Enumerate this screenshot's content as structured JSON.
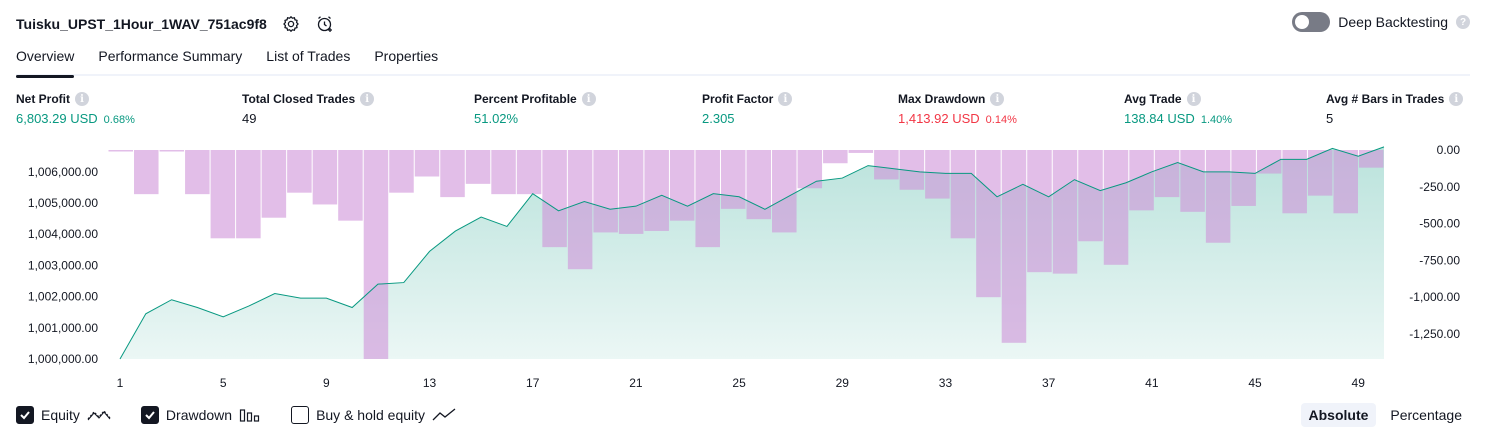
{
  "header": {
    "strategy_name": "Tuisku_UPST_1Hour_1WAV_751ac9f8",
    "settings_icon": "gear-icon",
    "alert_icon": "add-alert-clock-icon",
    "deep_backtesting_label": "Deep Backtesting",
    "deep_backtesting_enabled": false
  },
  "tabs": [
    {
      "label": "Overview",
      "active": true
    },
    {
      "label": "Performance Summary",
      "active": false
    },
    {
      "label": "List of Trades",
      "active": false
    },
    {
      "label": "Properties",
      "active": false
    }
  ],
  "stats": [
    {
      "label": "Net Profit",
      "value": "6,803.29 USD",
      "sub": "0.68%",
      "tone": "green"
    },
    {
      "label": "Total Closed Trades",
      "value": "49",
      "sub": "",
      "tone": "plain"
    },
    {
      "label": "Percent Profitable",
      "value": "51.02%",
      "sub": "",
      "tone": "green"
    },
    {
      "label": "Profit Factor",
      "value": "2.305",
      "sub": "",
      "tone": "green"
    },
    {
      "label": "Max Drawdown",
      "value": "1,413.92 USD",
      "sub": "0.14%",
      "tone": "red"
    },
    {
      "label": "Avg Trade",
      "value": "138.84 USD",
      "sub": "1.40%",
      "tone": "green"
    },
    {
      "label": "Avg # Bars in Trades",
      "value": "5",
      "sub": "",
      "tone": "plain"
    }
  ],
  "chart_data": {
    "type": "area",
    "x_ticks": [
      "1",
      "5",
      "9",
      "13",
      "17",
      "21",
      "25",
      "29",
      "33",
      "37",
      "41",
      "45",
      "49"
    ],
    "left_axis": {
      "ticks": [
        "1,000,000.00",
        "1,001,000.00",
        "1,002,000.00",
        "1,003,000.00",
        "1,004,000.00",
        "1,005,000.00",
        "1,006,000.00"
      ],
      "range": [
        1000000,
        1006700
      ]
    },
    "right_axis": {
      "ticks": [
        "0.00",
        "-250.00",
        "-500.00",
        "-750.00",
        "-1,000.00",
        "-1,250.00"
      ],
      "range": [
        -1420,
        0
      ]
    },
    "series": [
      {
        "name": "Equity",
        "color": "#089981",
        "x": [
          1,
          2,
          3,
          4,
          5,
          6,
          7,
          8,
          9,
          10,
          11,
          12,
          13,
          14,
          15,
          16,
          17,
          18,
          19,
          20,
          21,
          22,
          23,
          24,
          25,
          26,
          27,
          28,
          29,
          30,
          31,
          32,
          33,
          34,
          35,
          36,
          37,
          38,
          39,
          40,
          41,
          42,
          43,
          44,
          45,
          46,
          47,
          48,
          49,
          50
        ],
        "values": [
          1000000,
          1001450,
          1001900,
          1001650,
          1001350,
          1001700,
          1002100,
          1001950,
          1001950,
          1001650,
          1002400,
          1002450,
          1003450,
          1004100,
          1004550,
          1004250,
          1005300,
          1004750,
          1005050,
          1004800,
          1004900,
          1005250,
          1004900,
          1005300,
          1005200,
          1004800,
          1005250,
          1005700,
          1005800,
          1006200,
          1006100,
          1006000,
          1005950,
          1005950,
          1005200,
          1005600,
          1005200,
          1005750,
          1005400,
          1005650,
          1006000,
          1006300,
          1006000,
          1006000,
          1005950,
          1006400,
          1006400,
          1006750,
          1006500,
          1006800
        ]
      },
      {
        "name": "Drawdown",
        "color": "#ce93d8",
        "x": [
          1,
          2,
          3,
          4,
          5,
          6,
          7,
          8,
          9,
          10,
          11,
          12,
          13,
          14,
          15,
          16,
          17,
          18,
          19,
          20,
          21,
          22,
          23,
          24,
          25,
          26,
          27,
          28,
          29,
          30,
          31,
          32,
          33,
          34,
          35,
          36,
          37,
          38,
          39,
          40,
          41,
          42,
          43,
          44,
          45,
          46,
          47,
          48,
          49,
          50
        ],
        "values": [
          0,
          -300,
          0,
          -300,
          -600,
          -600,
          -460,
          -290,
          -370,
          -480,
          -1420,
          -290,
          -180,
          -320,
          -230,
          -300,
          -300,
          -660,
          -810,
          -560,
          -570,
          -550,
          -480,
          -660,
          -400,
          -470,
          -560,
          -260,
          -90,
          -20,
          -200,
          -270,
          -330,
          -600,
          -1000,
          -1310,
          -830,
          -840,
          -620,
          -780,
          -410,
          -320,
          -420,
          -630,
          -380,
          -160,
          -430,
          -310,
          -430,
          -120
        ]
      }
    ],
    "legend": [
      "Equity",
      "Drawdown",
      "Buy & hold equity"
    ]
  },
  "footer": {
    "legend": [
      {
        "label": "Equity",
        "checked": true,
        "glyph": "equity-line-icon"
      },
      {
        "label": "Drawdown",
        "checked": true,
        "glyph": "drawdown-bars-icon"
      },
      {
        "label": "Buy & hold equity",
        "checked": false,
        "glyph": "buy-hold-line-icon"
      }
    ],
    "modes": [
      {
        "label": "Absolute",
        "active": true
      },
      {
        "label": "Percentage",
        "active": false
      }
    ]
  }
}
